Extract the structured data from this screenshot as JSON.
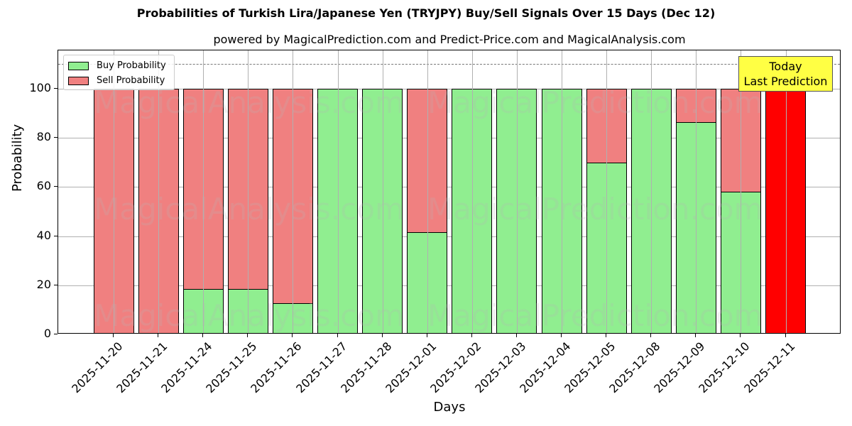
{
  "chart_data": {
    "type": "bar",
    "stacked": true,
    "title": "Probabilities of Turkish Lira/Japanese Yen (TRYJPY) Buy/Sell Signals Over 15 Days (Dec 12)",
    "subtitle": "powered by MagicalPrediction.com and Predict-Price.com and MagicalAnalysis.com",
    "xlabel": "Days",
    "ylabel": "Probability",
    "ylim": [
      0,
      115
    ],
    "yticks": [
      0,
      20,
      40,
      60,
      80,
      100
    ],
    "grid": true,
    "legend_position": "upper left",
    "reference_line": {
      "y": 110,
      "style": "dashed"
    },
    "categories": [
      "2025-11-20",
      "2025-11-21",
      "2025-11-24",
      "2025-11-25",
      "2025-11-26",
      "2025-11-27",
      "2025-11-28",
      "2025-12-01",
      "2025-12-02",
      "2025-12-03",
      "2025-12-04",
      "2025-12-05",
      "2025-12-08",
      "2025-12-09",
      "2025-12-10",
      "2025-12-11"
    ],
    "series": [
      {
        "name": "Buy Probability",
        "color": "#90ee90",
        "values": [
          0,
          0,
          18.5,
          18.5,
          12.8,
          100,
          100,
          41.6,
          100,
          100,
          100,
          69.8,
          100,
          86.3,
          58.2,
          0
        ]
      },
      {
        "name": "Sell Probability",
        "color": "#f08080",
        "values": [
          100,
          100,
          81.5,
          81.5,
          87.2,
          0,
          0,
          58.4,
          0,
          0,
          0,
          30.2,
          0,
          13.7,
          41.8,
          0
        ]
      }
    ],
    "today_bar": {
      "category": "2025-12-11",
      "value": 100,
      "color": "#ff0000"
    },
    "annotation": {
      "line1": "Today",
      "line2": "Last Prediction",
      "color": "#ffff44"
    },
    "watermarks": [
      "MagicalAnalysis.com",
      "MagicalPrediction.com"
    ]
  },
  "legend": {
    "buy_label": "Buy Probability",
    "sell_label": "Sell Probability"
  }
}
